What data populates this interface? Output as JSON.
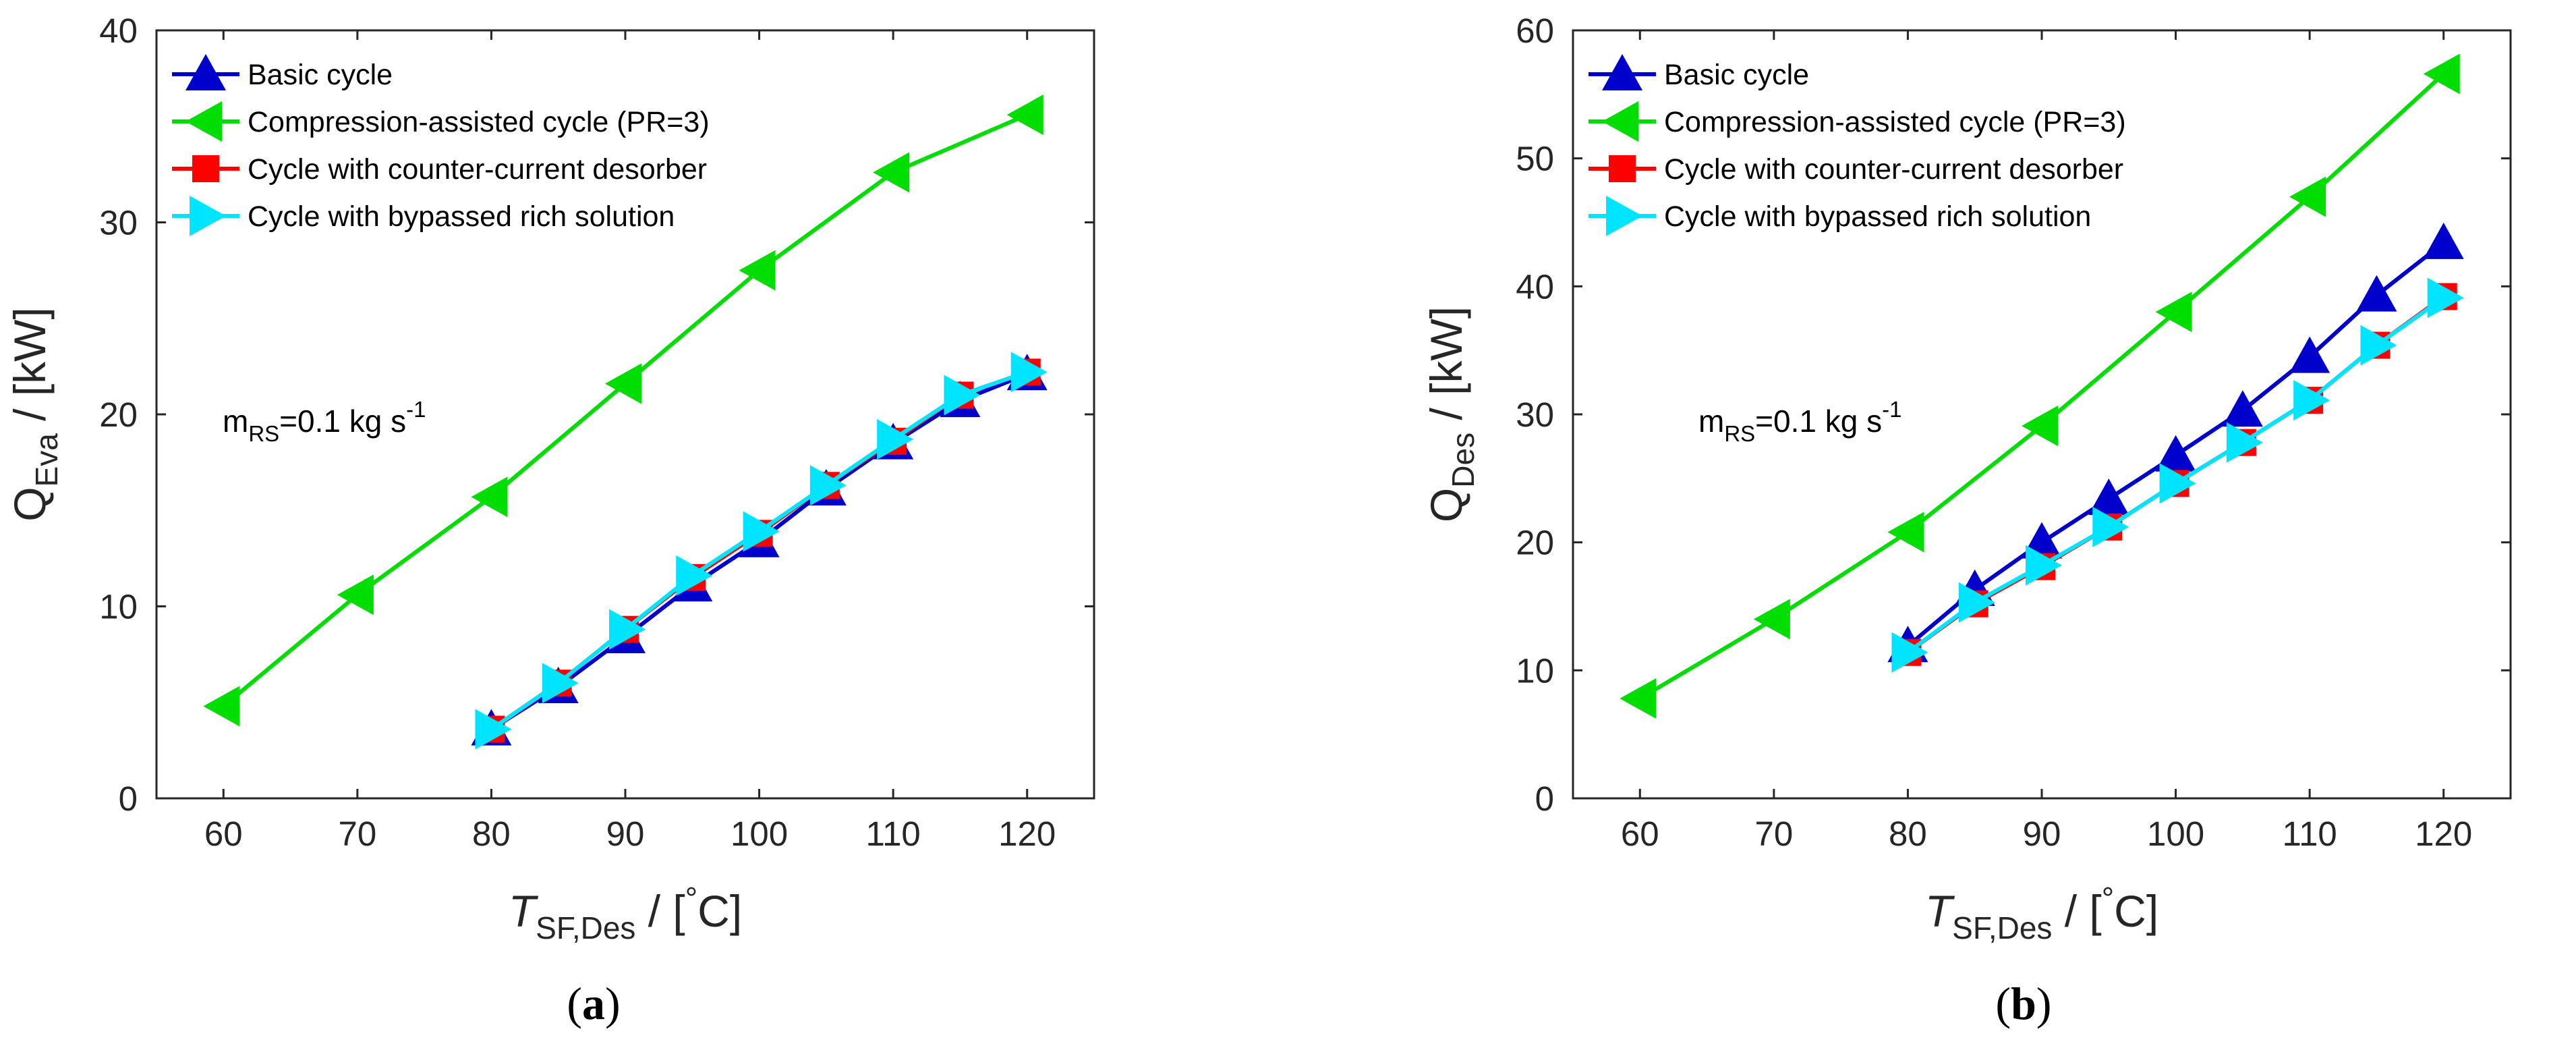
{
  "figure": {
    "panel_labels": [
      "a",
      "b"
    ]
  },
  "colors": {
    "Basic cycle": "#0000cd",
    "Compression-assisted cycle (PR=3)": "#00dd00",
    "Cycle with counter-current desorber": "#ff0000",
    "Cycle with bypassed rich solution": "#00e5ff"
  },
  "chart_data": [
    {
      "type": "line",
      "panel": "a",
      "xlabel": {
        "main": "T",
        "sub": "SF,Des",
        "units_prefix": " / [",
        "deg": "°",
        "units_suffix": "C]"
      },
      "ylabel": {
        "main": "Q",
        "sub": "Eva",
        "units": " / [kW]"
      },
      "xlim": [
        55,
        125
      ],
      "ylim": [
        0,
        40
      ],
      "xticks": [
        60,
        70,
        80,
        90,
        100,
        110,
        120
      ],
      "yticks": [
        0,
        10,
        20,
        30,
        40
      ],
      "annotation": {
        "pre": "m",
        "sub": "RS",
        "mid": "=0.1 kg s",
        "sup": "-1"
      },
      "legend_position": "top-left",
      "series": [
        {
          "name": "Basic cycle",
          "marker": "triangle-up",
          "x": [
            80,
            85,
            90,
            95,
            100,
            105,
            110,
            115,
            120
          ],
          "y": [
            3.6,
            5.8,
            8.4,
            11.1,
            13.4,
            16.1,
            18.5,
            20.7,
            22.1
          ]
        },
        {
          "name": "Compression-assisted cycle (PR=3)",
          "marker": "triangle-left",
          "x": [
            60,
            70,
            80,
            90,
            100,
            110,
            120
          ],
          "y": [
            4.8,
            10.6,
            15.7,
            21.6,
            27.5,
            32.6,
            35.6
          ]
        },
        {
          "name": "Cycle with counter-current desorber",
          "marker": "square",
          "x": [
            80,
            85,
            90,
            95,
            100,
            105,
            110,
            115,
            120
          ],
          "y": [
            3.6,
            6.0,
            8.8,
            11.5,
            13.8,
            16.3,
            18.6,
            21.0,
            22.2
          ]
        },
        {
          "name": "Cycle with bypassed rich solution",
          "marker": "triangle-right",
          "x": [
            80,
            85,
            90,
            95,
            100,
            105,
            110,
            115,
            120
          ],
          "y": [
            3.6,
            6.0,
            8.8,
            11.6,
            13.9,
            16.3,
            18.7,
            21.0,
            22.2
          ]
        }
      ]
    },
    {
      "type": "line",
      "panel": "b",
      "xlabel": {
        "main": "T",
        "sub": "SF,Des",
        "units_prefix": " / [",
        "deg": "°",
        "units_suffix": "C]"
      },
      "ylabel": {
        "main": "Q",
        "sub": "Des",
        "units": " / [kW]"
      },
      "xlim": [
        55,
        125
      ],
      "ylim": [
        0,
        60
      ],
      "xticks": [
        60,
        70,
        80,
        90,
        100,
        110,
        120
      ],
      "yticks": [
        0,
        10,
        20,
        30,
        40,
        50,
        60
      ],
      "annotation": {
        "pre": "m",
        "sub": "RS",
        "mid": "=0.1 kg s",
        "sup": "-1"
      },
      "legend_position": "top-left",
      "series": [
        {
          "name": "Basic cycle",
          "marker": "triangle-up",
          "x": [
            80,
            85,
            90,
            95,
            100,
            105,
            110,
            115,
            120
          ],
          "y": [
            11.9,
            16.3,
            20.0,
            23.4,
            26.8,
            30.3,
            34.5,
            39.3,
            43.4
          ]
        },
        {
          "name": "Compression-assisted cycle (PR=3)",
          "marker": "triangle-left",
          "x": [
            60,
            70,
            80,
            90,
            100,
            110,
            120
          ],
          "y": [
            7.8,
            14.0,
            20.8,
            29.1,
            38.0,
            47.0,
            56.6
          ]
        },
        {
          "name": "Cycle with counter-current desorber",
          "marker": "square",
          "x": [
            80,
            85,
            90,
            95,
            100,
            105,
            110,
            115,
            120
          ],
          "y": [
            11.4,
            15.2,
            18.1,
            21.2,
            24.6,
            27.8,
            31.1,
            35.4,
            39.2
          ]
        },
        {
          "name": "Cycle with bypassed rich solution",
          "marker": "triangle-right",
          "x": [
            80,
            85,
            90,
            95,
            100,
            105,
            110,
            115,
            120
          ],
          "y": [
            11.4,
            15.3,
            18.2,
            21.2,
            24.6,
            27.8,
            31.1,
            35.4,
            39.1
          ]
        }
      ]
    }
  ]
}
